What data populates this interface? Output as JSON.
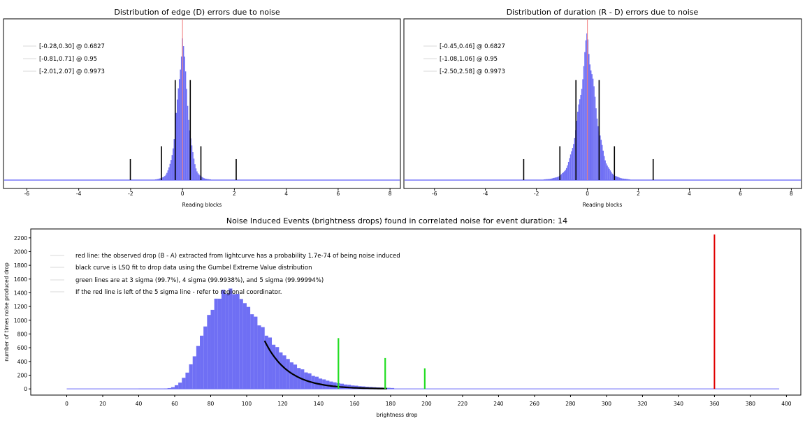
{
  "colors": {
    "histogram": "#6f6ff4",
    "center_line": "#f27f7f",
    "interval_line": "#000000",
    "observed_drop": "#e00000",
    "sigma_lines": "#22dd22",
    "fit_curve": "#000000",
    "axis": "#000000",
    "baseline": "#9a9afb"
  },
  "chart_data": [
    {
      "type": "bar",
      "title": "Distribution of edge (D) errors due to noise",
      "xlabel": "Reading blocks",
      "ylabel": "",
      "xlim": [
        -6.9,
        8.4
      ],
      "xticks": [
        -6,
        -4,
        -2,
        0,
        2,
        4,
        6,
        8
      ],
      "distribution": {
        "center": 0.0,
        "sigma": 0.3,
        "shape": "laplace-like",
        "peak_y": 0.9
      },
      "legend": [
        {
          "label": "[-0.28,0.30] @ 0.6827"
        },
        {
          "label": "[-0.81,0.71] @ 0.95"
        },
        {
          "label": "[-2.01,2.07] @ 0.9973"
        }
      ],
      "intervals": [
        {
          "lo": -0.28,
          "hi": 0.3,
          "level": 0.6827,
          "height": 0.62
        },
        {
          "lo": -0.81,
          "hi": 0.71,
          "level": 0.95,
          "height": 0.21
        },
        {
          "lo": -2.01,
          "hi": 2.07,
          "level": 0.9973,
          "height": 0.13
        }
      ]
    },
    {
      "type": "bar",
      "title": "Distribution of duration (R - D) errors due to noise",
      "xlabel": "Reading blocks",
      "ylabel": "",
      "xlim": [
        -7.2,
        8.4
      ],
      "xticks": [
        -6,
        -4,
        -2,
        0,
        2,
        4,
        6,
        8
      ],
      "distribution": {
        "center": 0.0,
        "sigma": 0.48,
        "shape": "laplace-like",
        "peak_y": 0.9
      },
      "legend": [
        {
          "label": "[-0.45,0.46] @ 0.6827"
        },
        {
          "label": "[-1.08,1.06] @ 0.95"
        },
        {
          "label": "[-2.50,2.58] @ 0.9973"
        }
      ],
      "intervals": [
        {
          "lo": -0.45,
          "hi": 0.46,
          "level": 0.6827,
          "height": 0.62
        },
        {
          "lo": -1.08,
          "hi": 1.06,
          "level": 0.95,
          "height": 0.21
        },
        {
          "lo": -2.5,
          "hi": 2.58,
          "level": 0.9973,
          "height": 0.13
        }
      ]
    },
    {
      "type": "bar",
      "title": "Noise Induced Events (brightness drops) found in correlated noise for event duration: 14",
      "xlabel": "brightness drop",
      "ylabel": "number of times noise produced drop",
      "xlim": [
        -20,
        408
      ],
      "ylim": [
        -90,
        2330
      ],
      "xticks": [
        0,
        20,
        40,
        60,
        80,
        100,
        120,
        140,
        160,
        180,
        200,
        220,
        240,
        260,
        280,
        300,
        320,
        340,
        360,
        380,
        400
      ],
      "yticks": [
        0,
        200,
        400,
        600,
        800,
        1000,
        1200,
        1400,
        1600,
        1800,
        2000,
        2200
      ],
      "histogram": {
        "bin_width": 2,
        "mode": 90,
        "peak_count": 1430,
        "range": [
          40,
          182
        ],
        "distribution": "Gumbel extreme value"
      },
      "fit_curve": {
        "from": 110,
        "to": 178,
        "at_110": 700
      },
      "observed_drop": {
        "x": 360,
        "height": 2250
      },
      "sigma_lines": [
        {
          "x": 151,
          "height": 740
        },
        {
          "x": 177,
          "height": 450
        },
        {
          "x": 199,
          "height": 300
        }
      ],
      "baseline_range": [
        0,
        396
      ],
      "legend": [
        {
          "label": "red line: the observed drop (B - A) extracted from lightcurve has a probability 1.7e-74 of being noise induced"
        },
        {
          "label": "black curve is LSQ fit to drop data using the Gumbel Extreme Value distribution"
        },
        {
          "label": "green lines are at 3 sigma (99.7%), 4 sigma (99.9938%), and 5 sigma (99.99994%)"
        },
        {
          "label": "If the red line is left of the 5 sigma line - refer to regional coordinator."
        }
      ]
    }
  ]
}
